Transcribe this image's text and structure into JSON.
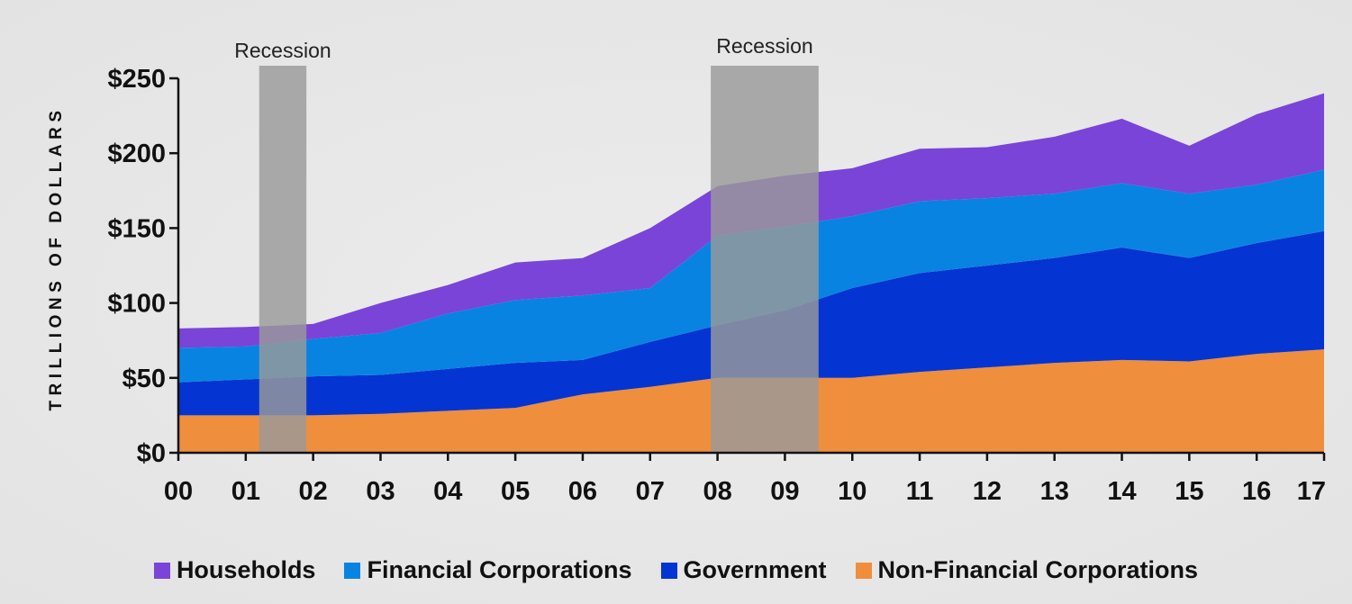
{
  "chart_data": {
    "type": "area",
    "stacked": true,
    "ylabel": "TRILLIONS OF DOLLARS",
    "xlabel": "",
    "ylim": [
      0,
      250
    ],
    "yticks": [
      0,
      50,
      100,
      150,
      200,
      250
    ],
    "ytick_labels": [
      "$0",
      "$50",
      "$100",
      "$150",
      "$200",
      "$250"
    ],
    "categories": [
      "00",
      "01",
      "02",
      "03",
      "04",
      "05",
      "06",
      "07",
      "08",
      "09",
      "10",
      "11",
      "12",
      "13",
      "14",
      "15",
      "16",
      "17"
    ],
    "series": [
      {
        "name": "Non-Financial Corporations",
        "color": "#ef8e3c",
        "values": [
          25,
          25,
          25,
          26,
          28,
          30,
          39,
          44,
          50,
          50,
          50,
          54,
          57,
          60,
          62,
          61,
          66,
          69
        ]
      },
      {
        "name": "Government",
        "color": "#0434d2",
        "values": [
          22,
          24,
          26,
          26,
          28,
          30,
          23,
          30,
          35,
          45,
          60,
          66,
          68,
          70,
          75,
          69,
          74,
          79
        ]
      },
      {
        "name": "Financial Corporations",
        "color": "#0983e2",
        "values": [
          23,
          22,
          25,
          28,
          37,
          42,
          43,
          36,
          60,
          56,
          48,
          48,
          45,
          43,
          43,
          43,
          39,
          41
        ]
      },
      {
        "name": "Households",
        "color": "#7a44d8",
        "values": [
          13,
          13,
          10,
          20,
          19,
          25,
          25,
          40,
          33,
          34,
          32,
          35,
          34,
          38,
          43,
          32,
          47,
          51
        ]
      }
    ],
    "legend_position": "bottom-center",
    "annotations": [
      {
        "label": "Recession",
        "x_start": 1.2,
        "x_end": 1.9
      },
      {
        "label": "Recession",
        "x_start": 7.9,
        "x_end": 9.5
      }
    ]
  }
}
